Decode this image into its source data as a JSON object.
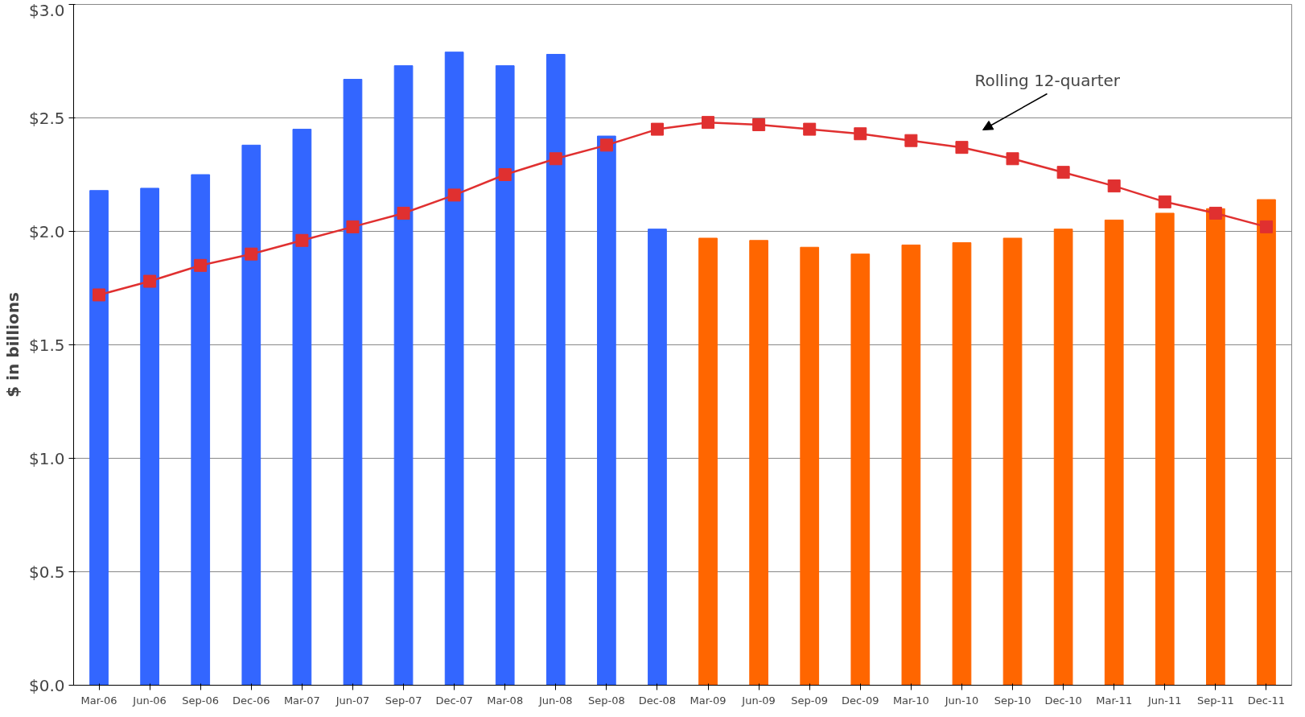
{
  "chart_data": {
    "type": "bar",
    "ylabel": "$ in billions",
    "categories": [
      "Mar-06",
      "Jun-06",
      "Sep-06",
      "Dec-06",
      "Mar-07",
      "Jun-07",
      "Sep-07",
      "Dec-07",
      "Mar-08",
      "Jun-08",
      "Sep-08",
      "Dec-08",
      "Mar-09",
      "Jun-09",
      "Sep-09",
      "Dec-09",
      "Mar-10",
      "Jun-10",
      "Sep-10",
      "Dec-10",
      "Mar-11",
      "Jun-11",
      "Sep-11",
      "Dec-11"
    ],
    "series": [
      {
        "colors": [
          "#3366ff",
          "#3366ff",
          "#3366ff",
          "#3366ff",
          "#3366ff",
          "#3366ff",
          "#3366ff",
          "#3366ff",
          "#3366ff",
          "#3366ff",
          "#3366ff",
          "#3366ff",
          "#ff6600",
          "#ff6600",
          "#ff6600",
          "#ff6600",
          "#ff6600",
          "#ff6600",
          "#ff6600",
          "#ff6600",
          "#ff6600",
          "#ff6600",
          "#ff6600",
          "#ff6600"
        ],
        "values": [
          2.18,
          2.19,
          2.25,
          2.38,
          2.45,
          2.67,
          2.73,
          2.79,
          2.73,
          2.78,
          2.42,
          2.01,
          1.97,
          1.96,
          1.93,
          1.9,
          1.94,
          1.95,
          1.97,
          2.01,
          2.05,
          2.08,
          2.1,
          2.14
        ]
      },
      {
        "type": "line",
        "color": "#e03030",
        "marker": "square",
        "values": [
          1.72,
          1.78,
          1.85,
          1.9,
          1.96,
          2.02,
          2.08,
          2.16,
          2.25,
          2.32,
          2.38,
          2.45,
          2.48,
          2.47,
          2.45,
          2.43,
          2.4,
          2.37,
          2.32,
          2.26,
          2.2,
          2.13,
          2.08,
          2.02
        ]
      }
    ],
    "ylim": [
      0,
      3
    ],
    "yticks": [
      {
        "value": 0,
        "label": "$0.0"
      },
      {
        "value": 0.5,
        "label": "$0.5"
      },
      {
        "value": 1,
        "label": "$1.0"
      },
      {
        "value": 1.5,
        "label": "$1.5"
      },
      {
        "value": 2,
        "label": "$2.0"
      },
      {
        "value": 2.5,
        "label": "$2.5"
      },
      {
        "value": 3,
        "label": "$3.0"
      }
    ],
    "grid": "y",
    "annotations": [
      "Rolling 12-quarter"
    ]
  }
}
